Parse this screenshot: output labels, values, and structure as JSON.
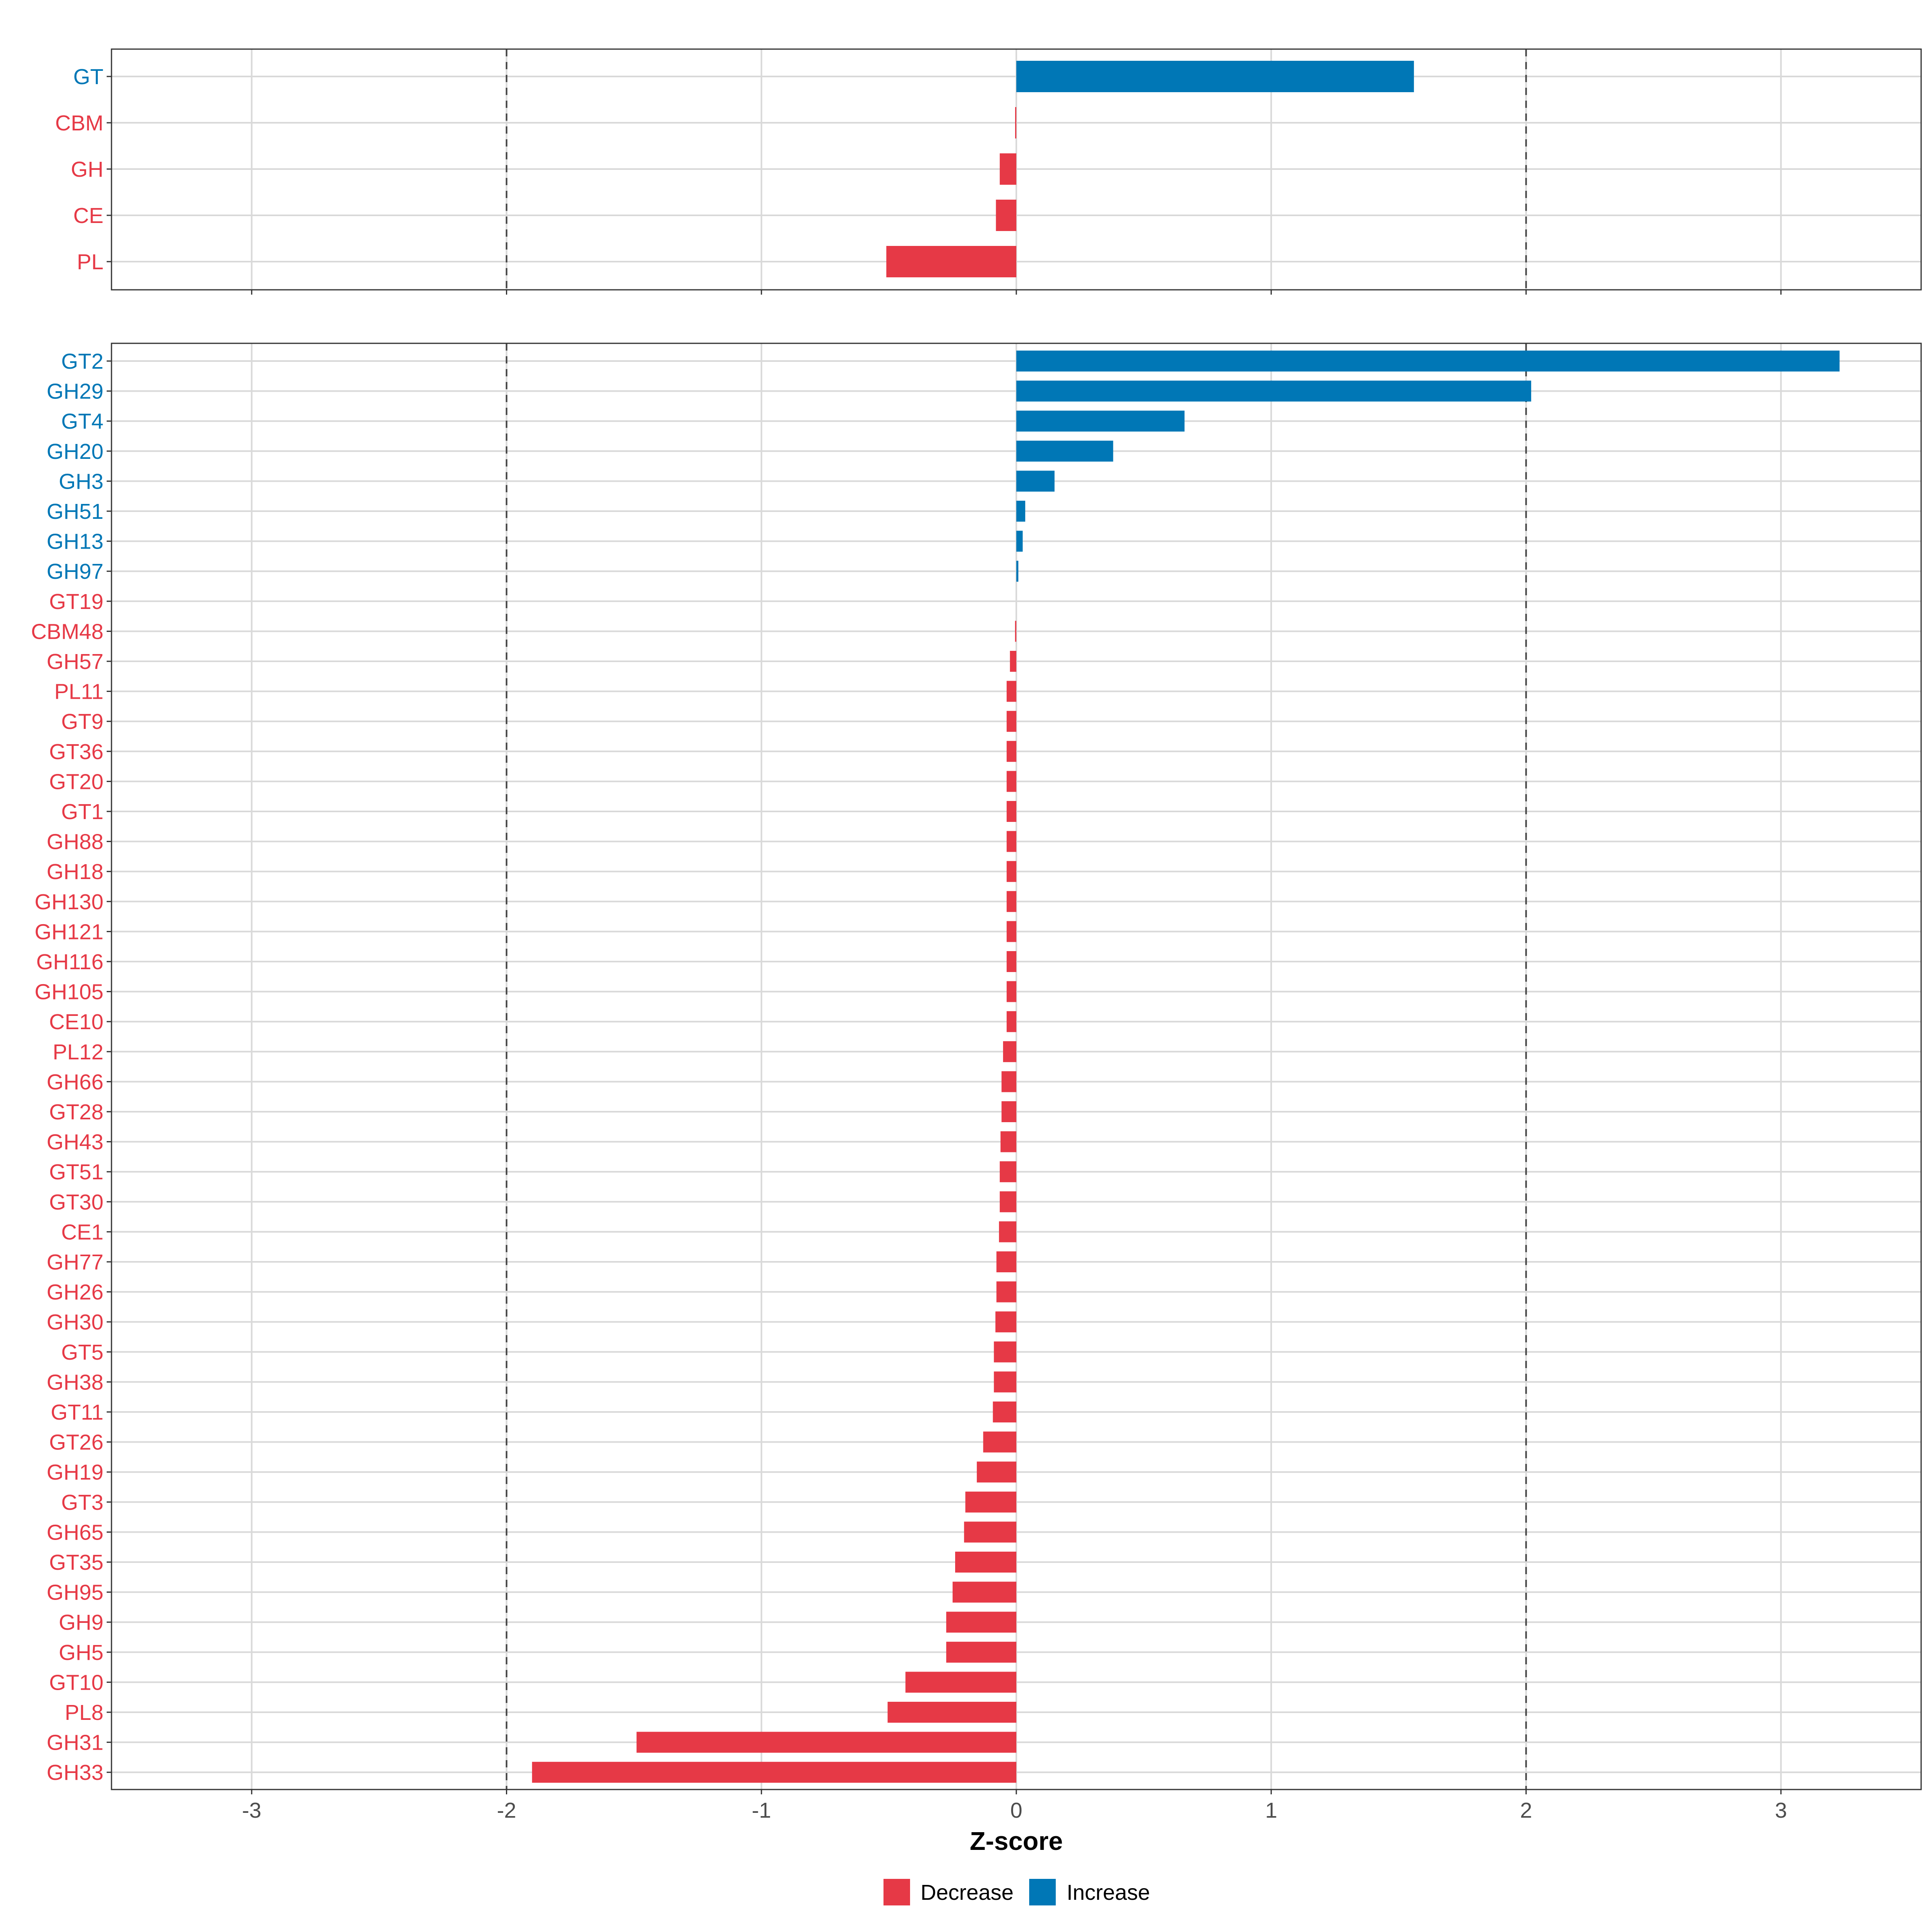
{
  "chart_data": {
    "type": "bar",
    "orientation": "horizontal",
    "xlabel": "Z-score",
    "xlim": [
      -3.55,
      3.55
    ],
    "x_ticks": [
      -3,
      -2,
      -1,
      0,
      1,
      2,
      3
    ],
    "x_tick_labels": [
      "-3",
      "-2",
      "-1",
      "0",
      "1",
      "2",
      "3"
    ],
    "reference_lines": [
      -2,
      2
    ],
    "grid": true,
    "legend_position": "bottom",
    "legend": [
      {
        "key": "Decrease",
        "label": "Decrease",
        "color": "#E63946"
      },
      {
        "key": "Increase",
        "label": "Increase",
        "color": "#0077B6"
      }
    ],
    "colors": {
      "Decrease": "#E63946",
      "Increase": "#0077B6"
    },
    "panels": [
      {
        "name": "class",
        "categories": [
          "GT",
          "CBM",
          "GH",
          "CE",
          "PL"
        ],
        "values": [
          1.56,
          -0.004,
          -0.065,
          -0.08,
          -0.51
        ],
        "direction": [
          "Increase",
          "Decrease",
          "Decrease",
          "Decrease",
          "Decrease"
        ]
      },
      {
        "name": "family",
        "categories": [
          "GT2",
          "GH29",
          "GT4",
          "GH20",
          "GH3",
          "GH51",
          "GH13",
          "GH97",
          "GT19",
          "CBM48",
          "GH57",
          "PL11",
          "GT9",
          "GT36",
          "GT20",
          "GT1",
          "GH88",
          "GH18",
          "GH130",
          "GH121",
          "GH116",
          "GH105",
          "CE10",
          "PL12",
          "GH66",
          "GT28",
          "GH43",
          "GT51",
          "GT30",
          "CE1",
          "GH77",
          "GH26",
          "GH30",
          "GT5",
          "GH38",
          "GT11",
          "GT26",
          "GH19",
          "GT3",
          "GH65",
          "GT35",
          "GH95",
          "GH9",
          "GH5",
          "GT10",
          "PL8",
          "GH31",
          "GH33"
        ],
        "values": [
          3.23,
          2.02,
          0.66,
          0.38,
          0.15,
          0.035,
          0.025,
          0.008,
          0.0,
          -0.005,
          -0.025,
          -0.038,
          -0.038,
          -0.038,
          -0.038,
          -0.038,
          -0.038,
          -0.038,
          -0.038,
          -0.038,
          -0.038,
          -0.038,
          -0.038,
          -0.052,
          -0.058,
          -0.058,
          -0.062,
          -0.065,
          -0.065,
          -0.068,
          -0.078,
          -0.078,
          -0.082,
          -0.088,
          -0.088,
          -0.092,
          -0.13,
          -0.155,
          -0.2,
          -0.205,
          -0.24,
          -0.25,
          -0.275,
          -0.275,
          -0.435,
          -0.505,
          -1.49,
          -1.9
        ],
        "direction": [
          "Increase",
          "Increase",
          "Increase",
          "Increase",
          "Increase",
          "Increase",
          "Increase",
          "Increase",
          "Decrease",
          "Decrease",
          "Decrease",
          "Decrease",
          "Decrease",
          "Decrease",
          "Decrease",
          "Decrease",
          "Decrease",
          "Decrease",
          "Decrease",
          "Decrease",
          "Decrease",
          "Decrease",
          "Decrease",
          "Decrease",
          "Decrease",
          "Decrease",
          "Decrease",
          "Decrease",
          "Decrease",
          "Decrease",
          "Decrease",
          "Decrease",
          "Decrease",
          "Decrease",
          "Decrease",
          "Decrease",
          "Decrease",
          "Decrease",
          "Decrease",
          "Decrease",
          "Decrease",
          "Decrease",
          "Decrease",
          "Decrease",
          "Decrease",
          "Decrease",
          "Decrease",
          "Decrease"
        ]
      }
    ]
  }
}
